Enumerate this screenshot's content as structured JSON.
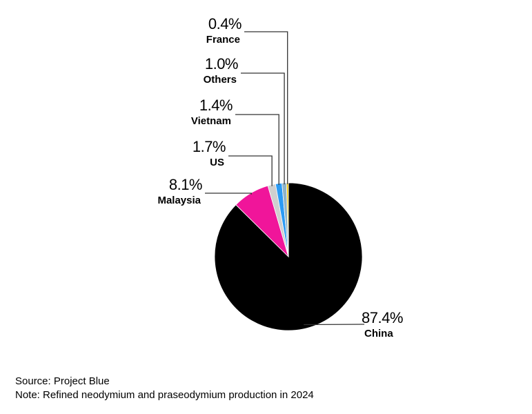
{
  "chart_data": {
    "type": "pie",
    "slices": [
      {
        "label": "China",
        "value": 87.4,
        "display": "87.4%",
        "color": "#000000"
      },
      {
        "label": "Malaysia",
        "value": 8.1,
        "display": "8.1%",
        "color": "#f0159a"
      },
      {
        "label": "US",
        "value": 1.7,
        "display": "1.7%",
        "color": "#cfcfcf"
      },
      {
        "label": "Vietnam",
        "value": 1.4,
        "display": "1.4%",
        "color": "#2b9bf4"
      },
      {
        "label": "Others",
        "value": 1.0,
        "display": "1.0%",
        "color": "#8fb3c9"
      },
      {
        "label": "France",
        "value": 0.4,
        "display": "0.4%",
        "color": "#f5c400"
      }
    ],
    "start": "12 o'clock",
    "direction": "clockwise"
  },
  "footer": {
    "source": "Source: Project Blue",
    "note": "Note: Refined neodymium and praseodymium production in 2024"
  }
}
